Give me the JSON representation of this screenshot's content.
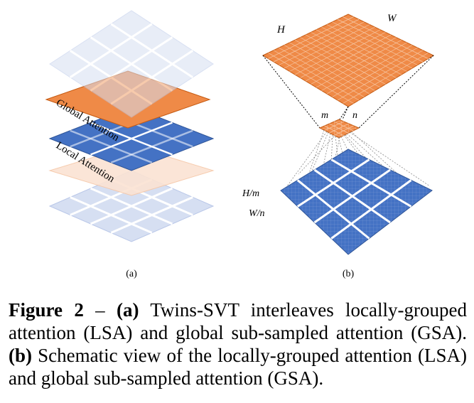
{
  "panel_a": {
    "global_label": "Global Attention",
    "local_label": "Local Attention",
    "caption": "(a)"
  },
  "panel_b": {
    "h_label": "H",
    "w_label": "W",
    "m_label": "m",
    "n_label": "n",
    "hm_label": "H/m",
    "wn_label": "W/n",
    "caption": "(b)"
  },
  "caption": {
    "figure_label": "Figure 2",
    "dash": " – ",
    "part_a_marker": "(a)",
    "part_a_text": " Twins-SVT interleaves locally-grouped attention (LSA) and global sub-sampled attention (GSA). ",
    "part_b_marker": "(b)",
    "part_b_text": " Schematic view of the locally-grouped attention (LSA) and global sub-sampled attention (GSA)."
  },
  "colors": {
    "orange": "#ef8a47",
    "blue": "#4472c4",
    "light_blue": "#d6dff2",
    "light_orange": "#fbe3d3"
  }
}
